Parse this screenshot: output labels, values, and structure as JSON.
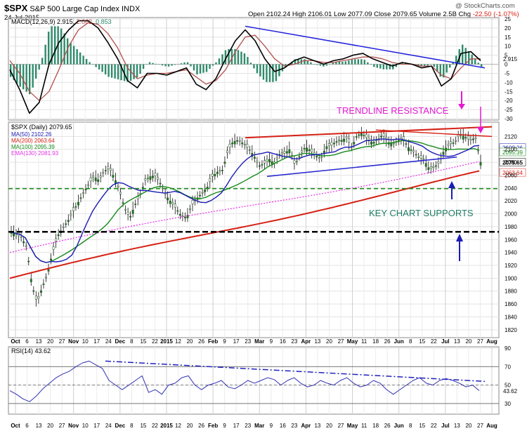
{
  "header": {
    "symbol": "$SPX",
    "name": "S&P 500 Large Cap Index",
    "exchange": "INDX",
    "date": "24-Jul-2015",
    "watermark": "@ StockCharts.com",
    "quote": {
      "open_label": "Open",
      "open": "2102.24",
      "high_label": "High",
      "high": "2106.01",
      "low_label": "Low",
      "low": "2077.09",
      "close_label": "Close",
      "close": "2079.65",
      "volume_label": "Volume",
      "volume": "2.5B",
      "chg_label": "Chg",
      "chg": "-22.50 (-1.07%)"
    }
  },
  "chart_data": [
    {
      "type": "line",
      "panel": "MACD",
      "legend": [
        "MACD(12,26,9)",
        "2.915",
        "2.062",
        "0.853"
      ],
      "colors": {
        "macd": "#000000",
        "signal": "#b0504c",
        "histogram": "#2f8a6b"
      },
      "ylim": [
        -30,
        25
      ],
      "yticks": [
        "25",
        "20",
        "15",
        "10",
        "5",
        "0",
        "-5",
        "-10",
        "-15",
        "-20",
        "-25",
        "-30"
      ],
      "last_value_tag": "2.915",
      "x_months": [
        "Oct",
        "Nov",
        "Dec",
        "2015",
        "Feb",
        "Mar",
        "Apr",
        "May",
        "Jun",
        "Jul",
        "Aug"
      ],
      "macd": [
        -3,
        -14,
        -27,
        -21,
        0,
        12,
        19,
        24,
        24,
        20,
        12,
        3,
        -9,
        -13,
        -5,
        -5,
        -6,
        -4,
        -2,
        -11,
        -14,
        -8,
        3,
        13,
        19,
        13,
        3,
        -4,
        -2,
        2,
        4,
        2,
        0,
        2,
        3,
        5,
        6,
        3,
        1,
        -1,
        1,
        0,
        -2,
        -1,
        -12,
        -8,
        6,
        7,
        2
      ],
      "signal": [
        2,
        -5,
        -15,
        -20,
        -15,
        -3,
        10,
        19,
        23,
        22,
        17,
        9,
        -2,
        -8,
        -6,
        -5,
        -5,
        -4,
        -3,
        -7,
        -11,
        -9,
        -3,
        7,
        15,
        16,
        10,
        3,
        -1,
        0,
        2,
        2,
        1,
        1,
        2,
        3,
        4,
        4,
        3,
        1,
        0,
        0,
        -1,
        -1,
        -6,
        -8,
        -2,
        3,
        3
      ],
      "annotations": [
        {
          "text": "TRENDLINE RESISTANCE",
          "color": "#e619d2"
        },
        {
          "text": "blue trendline",
          "from": [
            "Mar",
            21
          ],
          "to": [
            "Aug",
            -2
          ]
        }
      ]
    },
    {
      "type": "bar",
      "panel": "Price",
      "title": "$SPX (Daily) 2079.65",
      "ylim": [
        1810,
        2140
      ],
      "yticks": [
        "2120",
        "2100",
        "2080",
        "2060",
        "2040",
        "2020",
        "2000",
        "1980",
        "1960",
        "1940",
        "1920",
        "1900",
        "1880",
        "1860",
        "1840",
        "1820"
      ],
      "series": [
        {
          "name": "MA(50) 2102.26",
          "color": "#1c1cb4"
        },
        {
          "name": "MA(200) 2063.64",
          "color": "#d52014"
        },
        {
          "name": "MA(100) 2095.39",
          "color": "#168a1a"
        },
        {
          "name": "EMA(130) 2081.93",
          "color": "#e630e6"
        }
      ],
      "last_value_tags": [
        {
          "value": "2102.26",
          "color": "#1c1cb4"
        },
        {
          "value": "2095.39",
          "color": "#168a1a"
        },
        {
          "value": "2079.65",
          "color": "#000000"
        },
        {
          "value": "2063.64",
          "color": "#d52014"
        }
      ],
      "close": [
        1972,
        1968,
        1963,
        1948,
        1890,
        1862,
        1886,
        1906,
        1940,
        1966,
        1978,
        1989,
        2004,
        2018,
        2032,
        2046,
        2058,
        2052,
        2066,
        2071,
        2056,
        2036,
        2008,
        1994,
        2014,
        2030,
        2052,
        2058,
        2059,
        2046,
        2028,
        2018,
        2008,
        1996,
        1994,
        2014,
        2024,
        2032,
        2041,
        2058,
        2065,
        2068,
        2098,
        2112,
        2114,
        2109,
        2101,
        2091,
        2074,
        2078,
        2085,
        2078,
        2092,
        2094,
        2100,
        2076,
        2091,
        2104,
        2098,
        2091,
        2084,
        2104,
        2106,
        2112,
        2114,
        2118,
        2103,
        2121,
        2125,
        2117,
        2110,
        2114,
        2123,
        2111,
        2108,
        2114,
        2116,
        2103,
        2096,
        2088,
        2084,
        2070,
        2072,
        2080,
        2100,
        2108,
        2111,
        2124,
        2119,
        2114,
        2118,
        2080
      ],
      "supports": [
        2039,
        1972
      ],
      "annotations": [
        {
          "text": "KEY CHART SUPPORTS",
          "color": "#1f7c66"
        }
      ]
    },
    {
      "type": "line",
      "panel": "RSI",
      "legend": "RSI(14) 43.62",
      "ylim": [
        20,
        90
      ],
      "yticks": [
        "90",
        "70",
        "50",
        "30"
      ],
      "last_value_tag": "43.62",
      "rsi": [
        44,
        40,
        35,
        32,
        38,
        46,
        52,
        58,
        62,
        65,
        70,
        74,
        76,
        72,
        68,
        55,
        50,
        45,
        50,
        55,
        60,
        42,
        45,
        40,
        50,
        52,
        58,
        60,
        50,
        45,
        50,
        52,
        55,
        48,
        46,
        50,
        55,
        52,
        55,
        58,
        56,
        50,
        55,
        58,
        52,
        48,
        50,
        55,
        52,
        50,
        55,
        58,
        52,
        48,
        50,
        55,
        52,
        45,
        40,
        45,
        50,
        55,
        58,
        52,
        50,
        55,
        57,
        55,
        52,
        48,
        50,
        44
      ],
      "annotations": [
        {
          "text": "dashed trendline",
          "color": "#2020c0"
        }
      ]
    }
  ],
  "x_axis": {
    "labels": [
      "Oct",
      "6",
      "13",
      "20",
      "27",
      "Nov",
      "10",
      "17",
      "24",
      "Dec",
      "8",
      "15",
      "22",
      "2015",
      "12",
      "20",
      "26",
      "Feb",
      "9",
      "17",
      "23",
      "Mar",
      "9",
      "16",
      "23",
      "Apr",
      "13",
      "20",
      "27",
      "May",
      "11",
      "18",
      "26",
      "Jun",
      "8",
      "15",
      "22",
      "Jul",
      "13",
      "20",
      "27",
      "Aug"
    ],
    "bold": [
      "Oct",
      "Nov",
      "Dec",
      "2015",
      "Feb",
      "Mar",
      "Apr",
      "May",
      "Jun",
      "Jul",
      "Aug"
    ]
  }
}
